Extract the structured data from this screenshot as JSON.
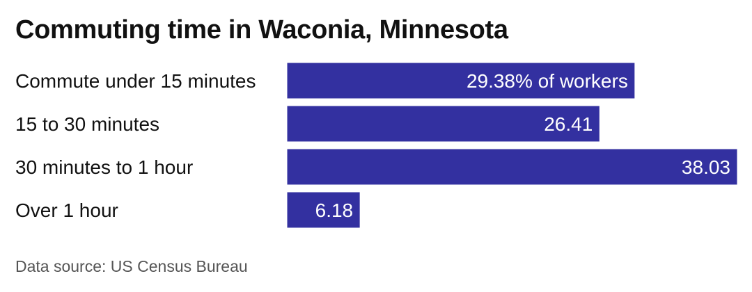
{
  "chart_data": {
    "type": "bar",
    "orientation": "horizontal",
    "title": "Commuting time in Waconia, Minnesota",
    "categories": [
      "Commute under 15 minutes",
      "15 to 30 minutes",
      "30 minutes to 1 hour",
      "Over 1 hour"
    ],
    "values": [
      29.38,
      26.41,
      38.03,
      6.18
    ],
    "value_labels": [
      "29.38% of workers",
      "26.41",
      "38.03",
      "6.18"
    ],
    "xlim": [
      0,
      38.03
    ],
    "grid": false,
    "legend": "none",
    "source": "Data source: US Census Bureau",
    "bar_color": "#3330a0"
  }
}
